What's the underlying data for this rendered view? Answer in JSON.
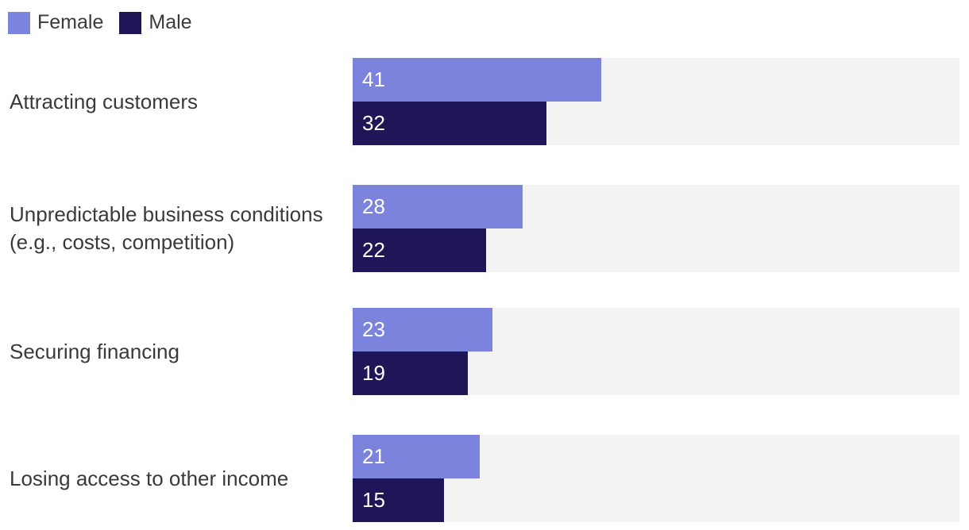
{
  "legend": {
    "items": [
      {
        "label": "Female",
        "color": "#7c83dc"
      },
      {
        "label": "Male",
        "color": "#1e1656"
      }
    ]
  },
  "chart_data": {
    "type": "bar",
    "orientation": "horizontal",
    "categories": [
      "Attracting customers",
      "Unpredictable business conditions\n(e.g., costs, competition)",
      "Securing financing",
      "Losing access to other income"
    ],
    "series": [
      {
        "name": "Female",
        "color": "#7c83dc",
        "values": [
          41,
          28,
          23,
          21
        ]
      },
      {
        "name": "Male",
        "color": "#1e1656",
        "values": [
          32,
          22,
          19,
          15
        ]
      }
    ],
    "xlim": [
      0,
      100
    ],
    "value_labels": "inside bar, left-aligned, white",
    "track_color": "#f3f3f4",
    "background_color": "#ffffff",
    "label_color": "#3a3a3a",
    "legend_position": "top-left",
    "grid": false,
    "axes_shown": false
  }
}
